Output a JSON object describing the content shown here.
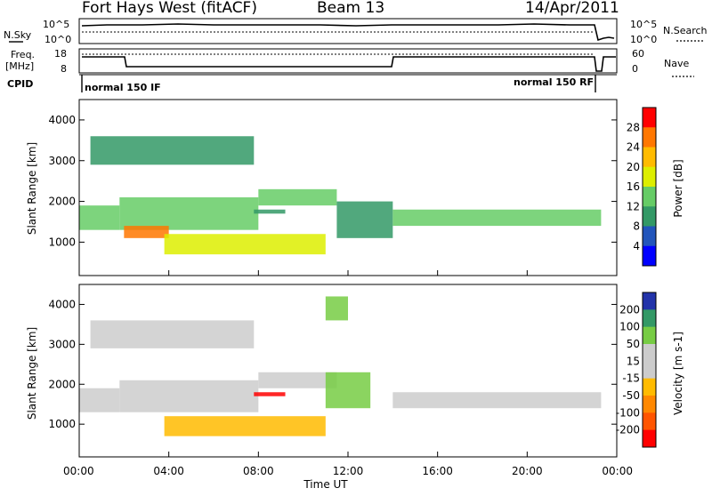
{
  "header": {
    "station": "Fort Hays West (fitACF)",
    "beam": "Beam 13",
    "date": "14/Apr/2011"
  },
  "top_panels": {
    "nsky_label": "N.Sky",
    "nsky_ticks": [
      "10^5",
      "10^0"
    ],
    "nsearch_label": "N.Search",
    "nsearch_ticks": [
      "10^5",
      "10^0"
    ],
    "freq_label_1": "Freq.",
    "freq_label_2": "[MHz]",
    "freq_ticks": [
      "18",
      "8"
    ],
    "nave_label": "Nave",
    "nave_ticks": [
      "60",
      "0"
    ],
    "cpid_label": "CPID",
    "cpid_left": "normal 150 IF",
    "cpid_right": "normal 150 RF"
  },
  "chart_data": [
    {
      "type": "heatmap",
      "name": "power",
      "ylabel": "Slant Range [km]",
      "y_ticks": [
        "4000",
        "3000",
        "2000",
        "1000"
      ],
      "ylim": [
        180,
        4500
      ],
      "colorbar_label": "Power [dB]",
      "colorbar_ticks": [
        "28",
        "24",
        "20",
        "16",
        "12",
        "8",
        "4"
      ],
      "colorbar_colors": [
        "#ff0000",
        "#ff7700",
        "#ffbb00",
        "#ddee00",
        "#66cc66",
        "#339966",
        "#2255bb",
        "#0000ff"
      ],
      "bands": [
        {
          "start": 0.0,
          "end": 1.8,
          "range_low": 1300,
          "range_high": 1900,
          "level": 12
        },
        {
          "start": 1.8,
          "end": 8.0,
          "range_low": 1300,
          "range_high": 2100,
          "level": 10
        },
        {
          "start": 8.0,
          "end": 11.5,
          "range_low": 1900,
          "range_high": 2300,
          "level": 12
        },
        {
          "start": 11.5,
          "end": 14.0,
          "range_low": 1100,
          "range_high": 2000,
          "level": 8
        },
        {
          "start": 14.0,
          "end": 23.3,
          "range_low": 1400,
          "range_high": 1800,
          "level": 10
        },
        {
          "start": 2.0,
          "end": 4.0,
          "range_low": 1100,
          "range_high": 1400,
          "level": 22
        },
        {
          "start": 3.8,
          "end": 11.0,
          "range_low": 700,
          "range_high": 1200,
          "level": 14
        },
        {
          "start": 0.5,
          "end": 7.8,
          "range_low": 2900,
          "range_high": 3600,
          "level": 6
        },
        {
          "start": 7.8,
          "end": 9.2,
          "range_low": 1700,
          "range_high": 1800,
          "level": 8
        }
      ]
    },
    {
      "type": "heatmap",
      "name": "velocity",
      "ylabel": "Slant Range [km]",
      "y_ticks": [
        "4000",
        "3000",
        "2000",
        "1000"
      ],
      "ylim": [
        180,
        4500
      ],
      "xlabel": "Time UT",
      "x_ticks": [
        "00:00",
        "04:00",
        "08:00",
        "12:00",
        "16:00",
        "20:00",
        "00:00"
      ],
      "xlim": [
        0,
        24
      ],
      "colorbar_label": "Velocity [m s-1]",
      "colorbar_ticks": [
        "200",
        "100",
        "50",
        "15",
        "-15",
        "-50",
        "-100",
        "-200"
      ],
      "colorbar_colors": [
        "#2233aa",
        "#339966",
        "#77cc44",
        "#cccccc",
        "#cccccc",
        "#ffbb00",
        "#ff8800",
        "#ff5500",
        "#ff0000"
      ],
      "bands": [
        {
          "start": 0.0,
          "end": 1.8,
          "range_low": 1300,
          "range_high": 1900,
          "velocity": 0
        },
        {
          "start": 1.8,
          "end": 8.0,
          "range_low": 1300,
          "range_high": 2100,
          "velocity": 0
        },
        {
          "start": 8.0,
          "end": 11.5,
          "range_low": 1900,
          "range_high": 2300,
          "velocity": 0
        },
        {
          "start": 14.0,
          "end": 23.3,
          "range_low": 1400,
          "range_high": 1800,
          "velocity": 0
        },
        {
          "start": 3.8,
          "end": 11.0,
          "range_low": 700,
          "range_high": 1200,
          "velocity": -60
        },
        {
          "start": 7.8,
          "end": 9.2,
          "range_low": 1700,
          "range_high": 1800,
          "velocity": -200
        },
        {
          "start": 11.0,
          "end": 13.0,
          "range_low": 1400,
          "range_high": 2300,
          "velocity": 40
        },
        {
          "start": 11.0,
          "end": 12.0,
          "range_low": 3600,
          "range_high": 4200,
          "velocity": 40
        },
        {
          "start": 0.5,
          "end": 7.8,
          "range_low": 2900,
          "range_high": 3600,
          "velocity": 0
        }
      ]
    }
  ]
}
